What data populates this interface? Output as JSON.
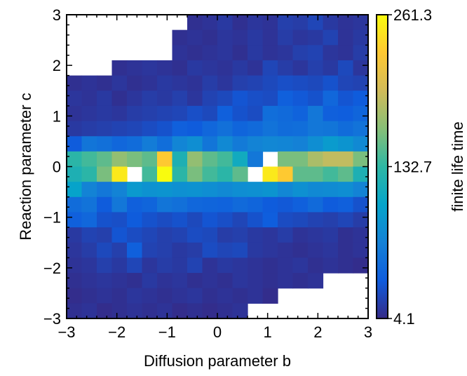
{
  "chart_data": {
    "type": "heatmap",
    "title": "",
    "xlabel": "Diffusion parameter b",
    "ylabel": "Reaction parameter c",
    "colorbar_label": "finite life time",
    "xlim": [
      -3,
      3
    ],
    "ylim": [
      -3,
      3
    ],
    "x_ticks": [
      -3,
      -2,
      -1,
      0,
      1,
      2,
      3
    ],
    "x_tick_labels": [
      "−3",
      "−2",
      "−1",
      "0",
      "1",
      "2",
      "3"
    ],
    "y_ticks": [
      -3,
      -2,
      -1,
      0,
      1,
      2,
      3
    ],
    "y_tick_labels": [
      "−3",
      "−2",
      "−1",
      "0",
      "1",
      "2",
      "3"
    ],
    "colorbar_range": [
      4.1,
      261.3
    ],
    "colorbar_ticks": [
      4.1,
      132.7,
      261.3
    ],
    "colorbar_tick_labels": [
      "4.1",
      "132.7",
      "261.3"
    ],
    "colormap_colors": [
      "#352a87",
      "#0f5cdd",
      "#1481d6",
      "#06a4ca",
      "#2eb7a4",
      "#87bf77",
      "#d1bb59",
      "#fec832",
      "#f9fb0e"
    ],
    "grid": false,
    "cell_size": 0.3,
    "cell_note": "rows listed from top (c = 2.85) to bottom (c = -2.85); columns from b = -2.85 to b = 2.85; null = empty cell",
    "rows": [
      [
        null,
        null,
        null,
        null,
        null,
        null,
        null,
        null,
        8,
        10,
        14,
        8,
        12,
        10,
        18,
        16,
        22,
        14,
        10,
        12
      ],
      [
        null,
        null,
        null,
        null,
        null,
        null,
        null,
        8,
        10,
        8,
        12,
        10,
        14,
        10,
        16,
        12,
        14,
        20,
        10,
        14
      ],
      [
        null,
        null,
        null,
        null,
        null,
        null,
        null,
        10,
        8,
        10,
        12,
        8,
        14,
        10,
        12,
        18,
        20,
        12,
        10,
        16
      ],
      [
        null,
        null,
        null,
        8,
        10,
        12,
        10,
        8,
        14,
        12,
        10,
        14,
        10,
        22,
        16,
        12,
        18,
        14,
        24,
        12
      ],
      [
        8,
        10,
        8,
        12,
        8,
        10,
        14,
        12,
        10,
        16,
        12,
        18,
        20,
        24,
        28,
        26,
        24,
        30,
        22,
        20
      ],
      [
        12,
        10,
        14,
        8,
        12,
        16,
        14,
        18,
        12,
        20,
        24,
        32,
        28,
        26,
        40,
        34,
        30,
        46,
        32,
        36
      ],
      [
        10,
        12,
        14,
        12,
        16,
        18,
        20,
        22,
        28,
        24,
        40,
        30,
        26,
        52,
        48,
        42,
        60,
        40,
        38,
        44
      ],
      [
        14,
        16,
        18,
        20,
        22,
        26,
        30,
        40,
        36,
        46,
        54,
        44,
        48,
        56,
        50,
        52,
        60,
        58,
        50,
        56
      ],
      [
        36,
        58,
        54,
        46,
        50,
        64,
        52,
        72,
        80,
        58,
        76,
        62,
        70,
        74,
        72,
        68,
        80,
        92,
        86,
        76
      ],
      [
        130,
        140,
        150,
        170,
        160,
        150,
        230,
        120,
        170,
        150,
        140,
        110,
        60,
        null,
        160,
        160,
        180,
        190,
        190,
        160
      ],
      [
        120,
        130,
        160,
        250,
        null,
        140,
        261,
        130,
        160,
        140,
        130,
        150,
        null,
        250,
        230,
        150,
        150,
        140,
        150,
        120
      ],
      [
        100,
        70,
        60,
        70,
        90,
        84,
        86,
        82,
        84,
        80,
        76,
        80,
        82,
        86,
        74,
        82,
        76,
        78,
        80,
        70
      ],
      [
        50,
        56,
        36,
        60,
        40,
        44,
        58,
        54,
        46,
        44,
        42,
        48,
        44,
        36,
        34,
        40,
        48,
        36,
        40,
        30
      ],
      [
        40,
        46,
        30,
        28,
        36,
        30,
        26,
        30,
        24,
        32,
        28,
        22,
        30,
        38,
        26,
        24,
        20,
        18,
        22,
        16
      ],
      [
        14,
        20,
        18,
        32,
        26,
        22,
        18,
        20,
        26,
        24,
        16,
        18,
        14,
        12,
        16,
        10,
        12,
        14,
        8,
        10
      ],
      [
        12,
        16,
        24,
        18,
        40,
        20,
        18,
        14,
        16,
        26,
        22,
        24,
        14,
        12,
        10,
        8,
        10,
        12,
        8,
        10
      ],
      [
        10,
        12,
        18,
        14,
        22,
        12,
        16,
        14,
        20,
        10,
        14,
        12,
        10,
        8,
        10,
        12,
        8,
        10,
        8,
        6
      ],
      [
        8,
        10,
        12,
        10,
        8,
        14,
        10,
        12,
        8,
        10,
        8,
        12,
        10,
        8,
        10,
        8,
        10,
        null,
        null,
        null
      ],
      [
        6,
        8,
        10,
        8,
        12,
        10,
        8,
        10,
        12,
        8,
        10,
        8,
        10,
        6,
        null,
        null,
        null,
        null,
        null,
        null
      ],
      [
        8,
        10,
        6,
        8,
        10,
        8,
        10,
        6,
        8,
        6,
        8,
        10,
        null,
        null,
        null,
        null,
        null,
        null,
        null,
        null
      ]
    ]
  }
}
